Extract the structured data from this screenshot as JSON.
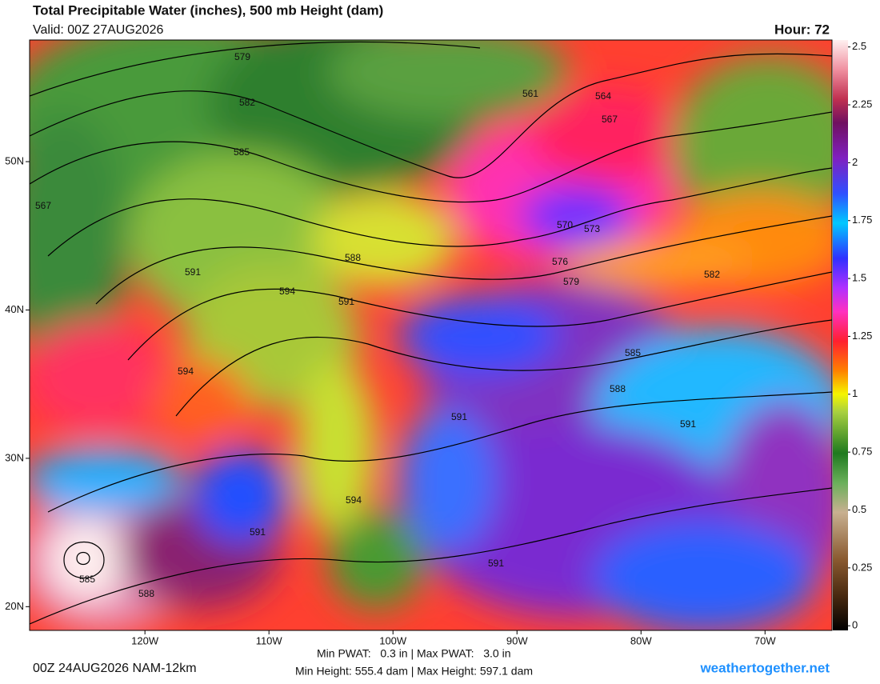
{
  "chart_data": {
    "type": "map",
    "title": "Total Precipitable Water (inches), 500 mb Height (dam)",
    "valid": "Valid: 00Z 27AUG2026",
    "hour": "Hour: 72",
    "run": "00Z 24AUG2026 NAM-12km",
    "pwat_range": "Min PWAT:   0.3 in | Max PWAT:   3.0 in",
    "height_range": "Min Height: 555.4 dam | Max Height: 597.1 dam",
    "credit": "weathertogether.net",
    "xlim": [
      -129.3,
      -64.6
    ],
    "ylim": [
      18.4,
      58.2
    ],
    "xticks": [
      {
        "value": -120,
        "label": "120W"
      },
      {
        "value": -110,
        "label": "110W"
      },
      {
        "value": -100,
        "label": "100W"
      },
      {
        "value": -90,
        "label": "90W"
      },
      {
        "value": -80,
        "label": "80W"
      },
      {
        "value": -70,
        "label": "70W"
      }
    ],
    "yticks": [
      {
        "value": 50,
        "label": "50N"
      },
      {
        "value": 40,
        "label": "40N"
      },
      {
        "value": 30,
        "label": "30N"
      },
      {
        "value": 20,
        "label": "20N"
      }
    ],
    "colorbar_lim": [
      -0.02,
      2.53
    ],
    "colorbar_ticks": [
      0,
      0.25,
      0.5,
      0.75,
      1,
      1.25,
      1.5,
      1.75,
      2,
      2.25,
      2.5
    ],
    "contours": [
      579,
      582,
      585,
      567,
      561,
      564,
      567,
      570,
      573,
      576,
      579,
      582,
      588,
      591,
      594,
      591,
      594,
      585,
      588,
      591,
      591,
      594,
      591,
      591,
      585,
      588
    ]
  }
}
